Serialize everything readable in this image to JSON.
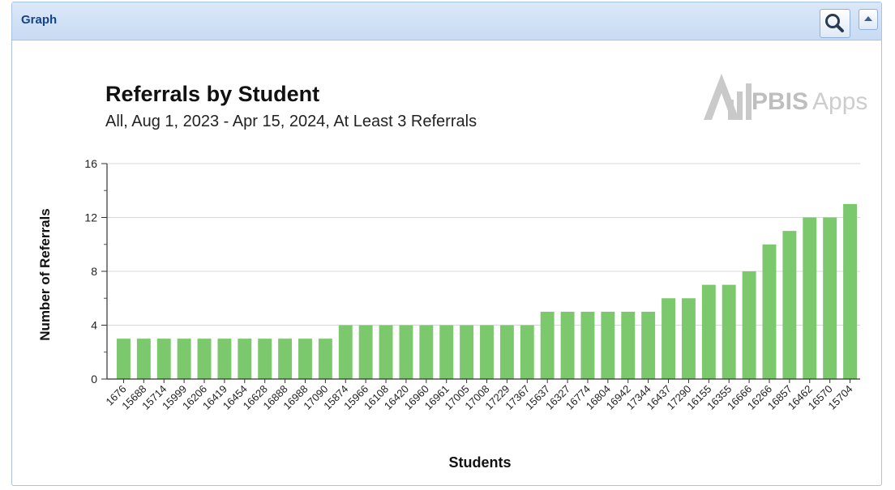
{
  "panel": {
    "title": "Graph",
    "icons": {
      "search": "magnifier-icon",
      "collapse": "collapse-up-icon"
    }
  },
  "logo": {
    "text_bold": "PBIS",
    "text_light": "Apps",
    "icon": "pbis-apps-logo"
  },
  "colors": {
    "bar": "#7cc86c",
    "header_text": "#15428b",
    "header_bg": "#d3e3f6"
  },
  "chart_data": {
    "type": "bar",
    "title": "Referrals by Student",
    "subtitle": "All, Aug 1, 2023 - Apr 15, 2024, At Least 3 Referrals",
    "xlabel": "Students",
    "ylabel": "Number of Referrals",
    "ylim": [
      0,
      16
    ],
    "yticks": [
      0,
      4,
      8,
      12,
      16
    ],
    "grid": true,
    "legend": "none",
    "categories": [
      "1676",
      "15688",
      "15714",
      "15999",
      "16206",
      "16419",
      "16454",
      "16628",
      "16888",
      "16988",
      "17090",
      "15874",
      "15966",
      "16108",
      "16420",
      "16960",
      "16961",
      "17005",
      "17008",
      "17229",
      "17367",
      "15637",
      "16327",
      "16774",
      "16804",
      "16942",
      "17344",
      "16437",
      "17290",
      "16155",
      "16355",
      "16666",
      "16266",
      "16857",
      "16462",
      "16570",
      "15704"
    ],
    "values": [
      3,
      3,
      3,
      3,
      3,
      3,
      3,
      3,
      3,
      3,
      3,
      4,
      4,
      4,
      4,
      4,
      4,
      4,
      4,
      4,
      4,
      5,
      5,
      5,
      5,
      5,
      5,
      6,
      6,
      7,
      7,
      8,
      10,
      11,
      12,
      12,
      13
    ]
  }
}
